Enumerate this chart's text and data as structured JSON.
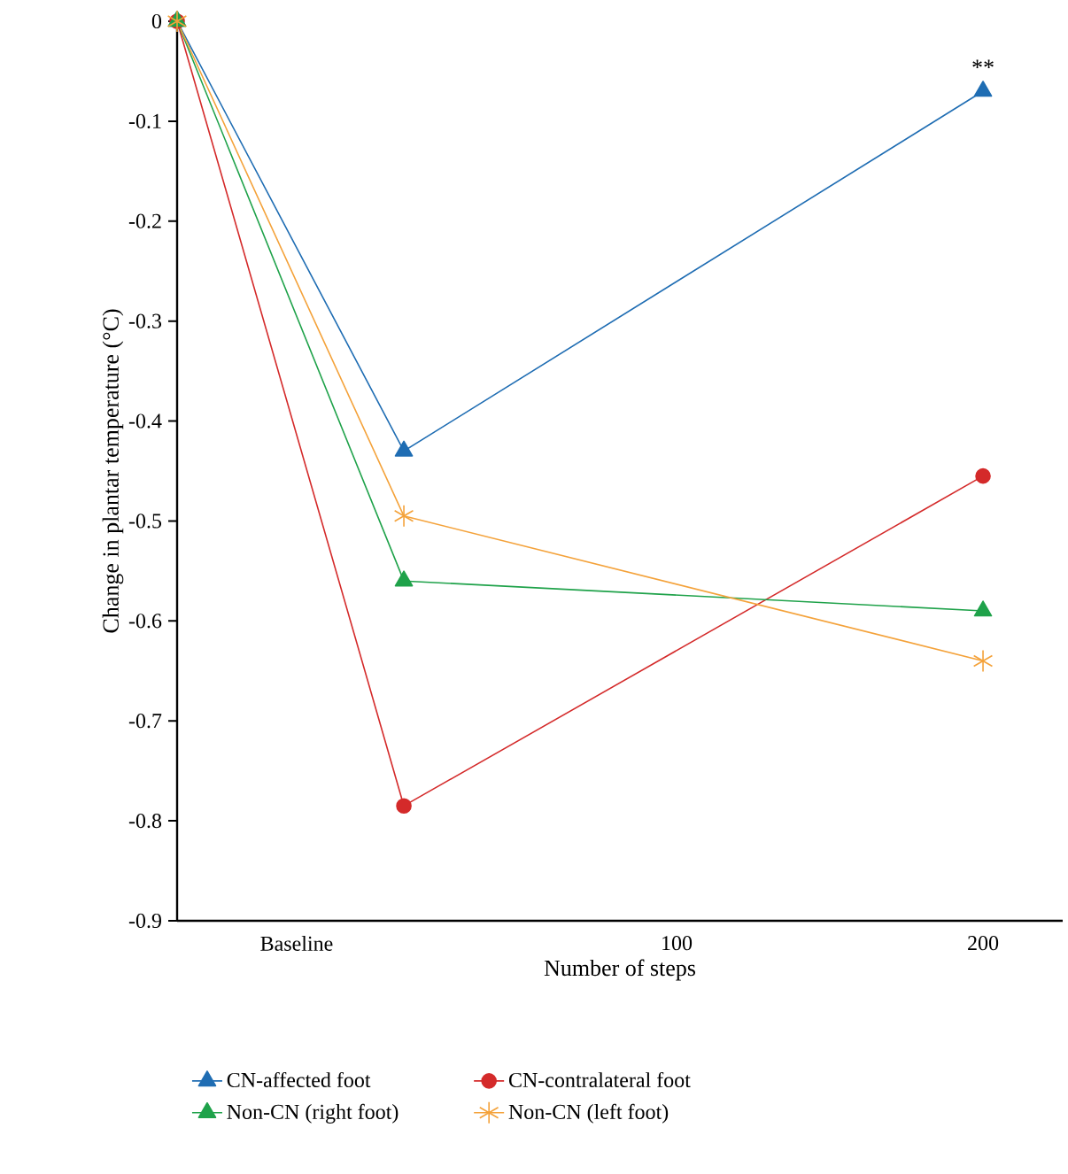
{
  "chart_data": {
    "type": "line",
    "xlabel": "Number of steps",
    "ylabel": "Change in plantar temperature (°C)",
    "xlim": [
      -63,
      226
    ],
    "xticks": [
      {
        "value": -24,
        "label": "Baseline"
      },
      100,
      200
    ],
    "ylim": [
      -0.9,
      0
    ],
    "yticks": [
      0,
      -0.1,
      -0.2,
      -0.3,
      -0.4,
      -0.5,
      -0.6,
      -0.7,
      -0.8,
      -0.9
    ],
    "x": [
      -63,
      11,
      200
    ],
    "series": [
      {
        "name": "CN-affected foot",
        "color": "#1f6db3",
        "marker": "triangle",
        "values": [
          0,
          -0.43,
          -0.07
        ]
      },
      {
        "name": "CN-contralateral foot",
        "color": "#d42a2a",
        "marker": "circle",
        "values": [
          0,
          -0.785,
          -0.455
        ]
      },
      {
        "name": "Non-CN (right foot)",
        "color": "#1fa24a",
        "marker": "triangle",
        "values": [
          0,
          -0.56,
          -0.59
        ]
      },
      {
        "name": "Non-CN (left foot)",
        "color": "#f4a23a",
        "marker": "cross",
        "values": [
          0,
          -0.495,
          -0.64
        ]
      }
    ],
    "annotations": [
      {
        "text": "**",
        "x": 200,
        "y": -0.07
      }
    ],
    "legend": "bottom",
    "grid": false
  }
}
